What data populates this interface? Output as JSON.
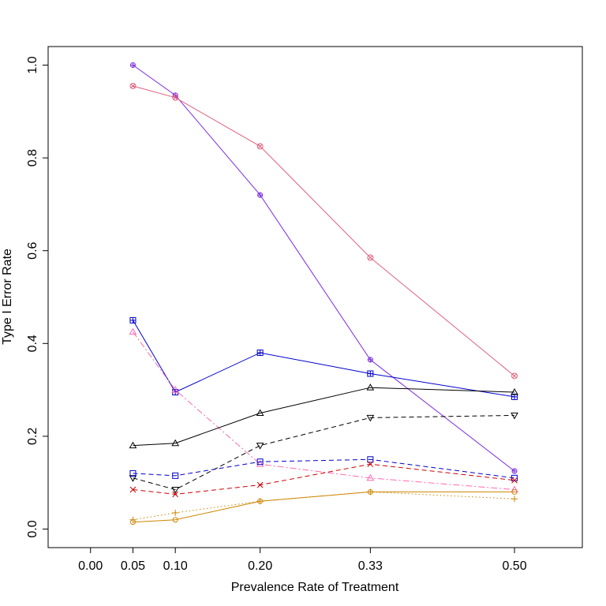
{
  "chart_data": {
    "type": "line",
    "title": "",
    "xlabel": "Prevalence Rate of Treatment",
    "ylabel": "Type I Error Rate",
    "x_ticks": [
      "0.00",
      "0.05",
      "0.10",
      "0.20",
      "0.33",
      "0.50"
    ],
    "x_tick_values": [
      0.0,
      0.05,
      0.1,
      0.2,
      0.33,
      0.5
    ],
    "y_ticks": [
      "0.0",
      "0.2",
      "0.4",
      "0.6",
      "0.8",
      "1.0"
    ],
    "y_tick_values": [
      0.0,
      0.2,
      0.4,
      0.6,
      0.8,
      1.0
    ],
    "xlim": [
      -0.05,
      0.58
    ],
    "ylim": [
      -0.04,
      1.04
    ],
    "x": [
      0.05,
      0.1,
      0.2,
      0.33,
      0.5
    ],
    "series": [
      {
        "name": "purple-circle-plus",
        "color": "#7B2BE0",
        "dash": "solid",
        "marker": "circle-plus",
        "values": [
          1.0,
          0.935,
          0.72,
          0.365,
          0.125
        ]
      },
      {
        "name": "pink-circle-x",
        "color": "#E0607E",
        "dash": "solid",
        "marker": "circle-x",
        "values": [
          0.955,
          0.93,
          0.825,
          0.585,
          0.33
        ]
      },
      {
        "name": "blue-square-plus",
        "color": "#0000CD",
        "dash": "solid",
        "marker": "square-plus",
        "values": [
          0.45,
          0.295,
          0.38,
          0.335,
          0.285
        ]
      },
      {
        "name": "pink-triangle",
        "color": "#FF69B4",
        "dash": "dashdot",
        "marker": "triangle",
        "values": [
          0.425,
          0.3,
          0.14,
          0.11,
          0.085
        ]
      },
      {
        "name": "black-triangle",
        "color": "#000000",
        "dash": "solid",
        "marker": "triangle",
        "values": [
          0.18,
          0.185,
          0.25,
          0.305,
          0.295
        ]
      },
      {
        "name": "black-inverted-triangle",
        "color": "#000000",
        "dash": "dashed",
        "marker": "triangle-down",
        "values": [
          0.11,
          0.085,
          0.18,
          0.24,
          0.245
        ]
      },
      {
        "name": "blue-square",
        "color": "#0000CD",
        "dash": "dashed",
        "marker": "square",
        "values": [
          0.12,
          0.115,
          0.145,
          0.15,
          0.11
        ]
      },
      {
        "name": "red-x",
        "color": "#CD0000",
        "dash": "dashed",
        "marker": "x",
        "values": [
          0.085,
          0.075,
          0.095,
          0.14,
          0.105
        ]
      },
      {
        "name": "gold-circle",
        "color": "#CD8500",
        "dash": "solid",
        "marker": "circle",
        "values": [
          0.015,
          0.02,
          0.06,
          0.08,
          0.08
        ]
      },
      {
        "name": "gold-plus",
        "color": "#CD8500",
        "dash": "dotted",
        "marker": "plus",
        "values": [
          0.02,
          0.035,
          0.06,
          0.08,
          0.065
        ]
      }
    ]
  }
}
